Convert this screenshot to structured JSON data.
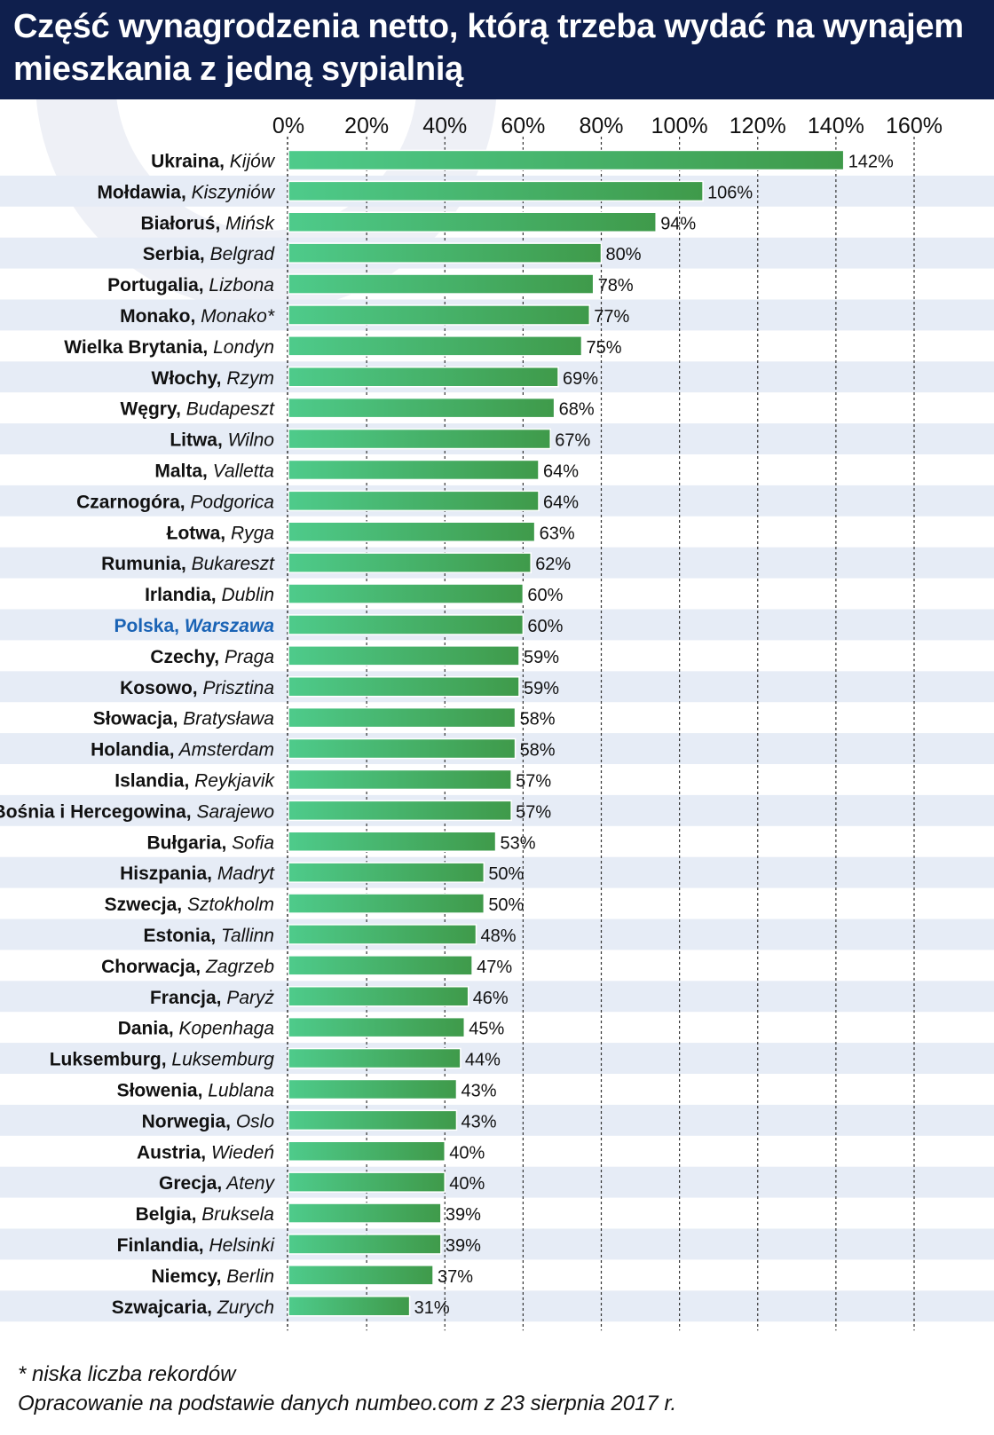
{
  "title": "Część wynagrodzenia netto, którą trzeba wydać na wynajem mieszkania z jedną sypialnią",
  "footnote": "* niska liczba rekordów",
  "source": "Opracowanie na podstawie danych numbeo.com z 23 sierpnia 2017 r.",
  "colors": {
    "header": "#0f1f4d",
    "bar_light": "#4ecb8b",
    "bar_dark": "#3f9a4a",
    "highlight_text": "#1a63b5",
    "stripe": "#e6ecf6"
  },
  "chart_data": {
    "type": "bar",
    "orientation": "horizontal",
    "xlim": [
      0,
      160
    ],
    "ticks": [
      "0%",
      "20%",
      "40%",
      "60%",
      "80%",
      "100%",
      "120%",
      "140%",
      "160%"
    ],
    "tick_values": [
      0,
      20,
      40,
      60,
      80,
      100,
      120,
      140,
      160
    ],
    "grid": "vertical dashed",
    "highlight": "Polska",
    "categories": [
      {
        "country": "Ukraina",
        "city": "Kijów",
        "value": 142,
        "label": "142%"
      },
      {
        "country": "Mołdawia",
        "city": "Kiszyniów",
        "value": 106,
        "label": "106%"
      },
      {
        "country": "Białoruś",
        "city": "Mińsk",
        "value": 94,
        "label": "94%"
      },
      {
        "country": "Serbia",
        "city": "Belgrad",
        "value": 80,
        "label": "80%"
      },
      {
        "country": "Portugalia",
        "city": "Lizbona",
        "value": 78,
        "label": "78%"
      },
      {
        "country": "Monako",
        "city": "Monako*",
        "value": 77,
        "label": "77%"
      },
      {
        "country": "Wielka Brytania",
        "city": "Londyn",
        "value": 75,
        "label": "75%"
      },
      {
        "country": "Włochy",
        "city": "Rzym",
        "value": 69,
        "label": "69%"
      },
      {
        "country": "Węgry",
        "city": "Budapeszt",
        "value": 68,
        "label": "68%"
      },
      {
        "country": "Litwa",
        "city": "Wilno",
        "value": 67,
        "label": "67%"
      },
      {
        "country": "Malta",
        "city": "Valletta",
        "value": 64,
        "label": "64%"
      },
      {
        "country": "Czarnogóra",
        "city": "Podgorica",
        "value": 64,
        "label": "64%"
      },
      {
        "country": "Łotwa",
        "city": "Ryga",
        "value": 63,
        "label": "63%"
      },
      {
        "country": "Rumunia",
        "city": "Bukareszt",
        "value": 62,
        "label": "62%"
      },
      {
        "country": "Irlandia",
        "city": "Dublin",
        "value": 60,
        "label": "60%"
      },
      {
        "country": "Polska",
        "city": "Warszawa",
        "value": 60,
        "label": "60%"
      },
      {
        "country": "Czechy",
        "city": "Praga",
        "value": 59,
        "label": "59%"
      },
      {
        "country": "Kosowo",
        "city": "Prisztina",
        "value": 59,
        "label": "59%"
      },
      {
        "country": "Słowacja",
        "city": "Bratysława",
        "value": 58,
        "label": "58%"
      },
      {
        "country": "Holandia",
        "city": "Amsterdam",
        "value": 58,
        "label": "58%"
      },
      {
        "country": "Islandia",
        "city": "Reykjavik",
        "value": 57,
        "label": "57%"
      },
      {
        "country": "Bośnia i Hercegowina",
        "city": "Sarajewo",
        "value": 57,
        "label": "57%"
      },
      {
        "country": "Bułgaria",
        "city": "Sofia",
        "value": 53,
        "label": "53%"
      },
      {
        "country": "Hiszpania",
        "city": "Madryt",
        "value": 50,
        "label": "50%"
      },
      {
        "country": "Szwecja",
        "city": "Sztokholm",
        "value": 50,
        "label": "50%"
      },
      {
        "country": "Estonia",
        "city": "Tallinn",
        "value": 48,
        "label": "48%"
      },
      {
        "country": "Chorwacja",
        "city": "Zagrzeb",
        "value": 47,
        "label": "47%"
      },
      {
        "country": "Francja",
        "city": "Paryż",
        "value": 46,
        "label": "46%"
      },
      {
        "country": "Dania",
        "city": "Kopenhaga",
        "value": 45,
        "label": "45%"
      },
      {
        "country": "Luksemburg",
        "city": "Luksemburg",
        "value": 44,
        "label": "44%"
      },
      {
        "country": "Słowenia",
        "city": "Lublana",
        "value": 43,
        "label": "43%"
      },
      {
        "country": "Norwegia",
        "city": "Oslo",
        "value": 43,
        "label": "43%"
      },
      {
        "country": "Austria",
        "city": "Wiedeń",
        "value": 40,
        "label": "40%"
      },
      {
        "country": "Grecja",
        "city": "Ateny",
        "value": 40,
        "label": "40%"
      },
      {
        "country": "Belgia",
        "city": "Bruksela",
        "value": 39,
        "label": "39%"
      },
      {
        "country": "Finlandia",
        "city": "Helsinki",
        "value": 39,
        "label": "39%"
      },
      {
        "country": "Niemcy",
        "city": "Berlin",
        "value": 37,
        "label": "37%"
      },
      {
        "country": "Szwajcaria",
        "city": "Zurych",
        "value": 31,
        "label": "31%"
      }
    ]
  }
}
